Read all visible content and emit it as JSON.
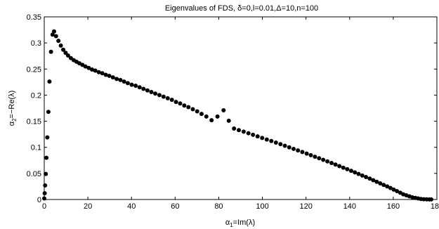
{
  "chart_data": {
    "type": "scatter",
    "title": "Eigenvalues of FDS, δ=0,l=0.01,Δ=10,n=100",
    "xlabel": "α1=Im(λ)",
    "xlabel_base": "α",
    "xlabel_sub": "1",
    "xlabel_rest": "=Im(λ)",
    "ylabel": "α2=−Re(λ)",
    "ylabel_base": "α",
    "ylabel_sub": "2",
    "ylabel_rest": "=−Re(λ)",
    "xlim": [
      0,
      180
    ],
    "ylim": [
      0,
      0.35
    ],
    "xticks": [
      0,
      20,
      40,
      60,
      80,
      100,
      120,
      140,
      160,
      180
    ],
    "yticks": [
      0,
      0.05,
      0.1,
      0.15,
      0.2,
      0.25,
      0.3,
      0.35
    ],
    "xtick_labels": [
      "0",
      "20",
      "40",
      "60",
      "80",
      "100",
      "120",
      "140",
      "160",
      "180"
    ],
    "ytick_labels": [
      "0",
      "0.05",
      "0.1",
      "0.15",
      "0.2",
      "0.25",
      "0.3",
      "0.35"
    ],
    "grid": false,
    "marker_color": "#000000",
    "series": [
      {
        "points": [
          [
            0.0,
            0.002
          ],
          [
            0.2,
            0.012
          ],
          [
            0.4,
            0.027
          ],
          [
            0.7,
            0.049
          ],
          [
            1.0,
            0.08
          ],
          [
            1.4,
            0.119
          ],
          [
            1.9,
            0.168
          ],
          [
            2.4,
            0.226
          ],
          [
            3.1,
            0.283
          ],
          [
            3.8,
            0.316
          ],
          [
            4.5,
            0.322
          ],
          [
            5.4,
            0.313
          ],
          [
            6.5,
            0.304
          ],
          [
            7.6,
            0.295
          ],
          [
            8.7,
            0.287
          ],
          [
            9.8,
            0.281
          ],
          [
            10.9,
            0.276
          ],
          [
            12.2,
            0.271
          ],
          [
            13.5,
            0.267
          ],
          [
            14.8,
            0.264
          ],
          [
            16.1,
            0.261
          ],
          [
            17.5,
            0.258
          ],
          [
            18.9,
            0.255
          ],
          [
            20.4,
            0.252
          ],
          [
            21.9,
            0.249
          ],
          [
            23.4,
            0.247
          ],
          [
            25.0,
            0.244
          ],
          [
            26.6,
            0.242
          ],
          [
            28.2,
            0.239
          ],
          [
            29.8,
            0.237
          ],
          [
            31.5,
            0.234
          ],
          [
            33.2,
            0.231
          ],
          [
            34.9,
            0.229
          ],
          [
            36.6,
            0.226
          ],
          [
            38.3,
            0.223
          ],
          [
            40.1,
            0.22
          ],
          [
            41.9,
            0.218
          ],
          [
            43.7,
            0.215
          ],
          [
            45.5,
            0.212
          ],
          [
            47.3,
            0.209
          ],
          [
            49.1,
            0.206
          ],
          [
            50.9,
            0.203
          ],
          [
            52.8,
            0.2
          ],
          [
            54.7,
            0.197
          ],
          [
            56.6,
            0.194
          ],
          [
            58.5,
            0.191
          ],
          [
            60.4,
            0.187
          ],
          [
            62.3,
            0.184
          ],
          [
            64.2,
            0.18
          ],
          [
            66.1,
            0.177
          ],
          [
            68.1,
            0.173
          ],
          [
            70.1,
            0.169
          ],
          [
            72.1,
            0.164
          ],
          [
            74.3,
            0.159
          ],
          [
            76.7,
            0.152
          ],
          [
            79.4,
            0.159
          ],
          [
            82.2,
            0.171
          ],
          [
            84.6,
            0.151
          ],
          [
            87.0,
            0.136
          ],
          [
            89.2,
            0.133
          ],
          [
            91.4,
            0.13
          ],
          [
            93.6,
            0.127
          ],
          [
            95.7,
            0.124
          ],
          [
            97.8,
            0.121
          ],
          [
            99.9,
            0.118
          ],
          [
            102.0,
            0.115
          ],
          [
            104.1,
            0.112
          ],
          [
            106.2,
            0.109
          ],
          [
            108.3,
            0.106
          ],
          [
            110.3,
            0.103
          ],
          [
            112.3,
            0.1
          ],
          [
            114.3,
            0.097
          ],
          [
            116.3,
            0.094
          ],
          [
            118.3,
            0.091
          ],
          [
            120.3,
            0.088
          ],
          [
            122.2,
            0.085
          ],
          [
            124.1,
            0.082
          ],
          [
            126.0,
            0.079
          ],
          [
            127.9,
            0.076
          ],
          [
            129.8,
            0.073
          ],
          [
            131.7,
            0.07
          ],
          [
            133.5,
            0.067
          ],
          [
            135.3,
            0.064
          ],
          [
            137.1,
            0.061
          ],
          [
            138.9,
            0.058
          ],
          [
            140.7,
            0.055
          ],
          [
            142.4,
            0.052
          ],
          [
            144.1,
            0.049
          ],
          [
            145.8,
            0.046
          ],
          [
            147.5,
            0.043
          ],
          [
            149.2,
            0.04
          ],
          [
            150.8,
            0.037
          ],
          [
            152.4,
            0.034
          ],
          [
            154.0,
            0.031
          ],
          [
            155.6,
            0.028
          ],
          [
            157.2,
            0.025
          ],
          [
            158.7,
            0.022
          ],
          [
            160.2,
            0.019
          ],
          [
            161.7,
            0.016
          ],
          [
            163.2,
            0.013
          ],
          [
            164.6,
            0.01
          ],
          [
            166.0,
            0.008
          ],
          [
            167.4,
            0.006
          ],
          [
            168.8,
            0.004
          ],
          [
            170.1,
            0.003
          ],
          [
            171.4,
            0.002
          ],
          [
            172.7,
            0.001
          ],
          [
            174.0,
            0.0005
          ],
          [
            175.3,
            0.0003
          ],
          [
            176.5,
            0.0002
          ],
          [
            177.4,
            0.0001
          ]
        ]
      }
    ]
  }
}
